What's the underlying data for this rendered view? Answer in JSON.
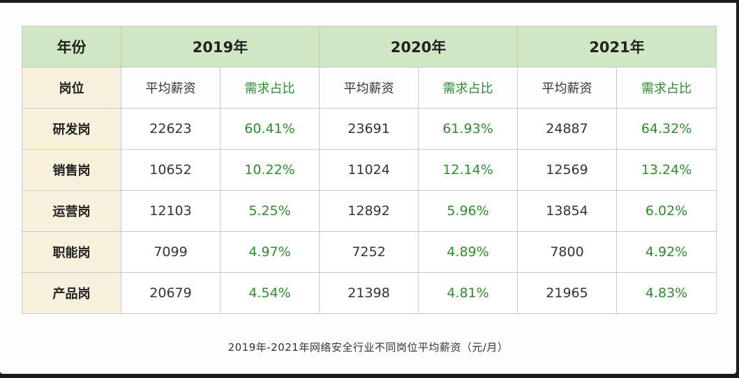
{
  "table": {
    "corner_label": "年份",
    "years": [
      "2019年",
      "2020年",
      "2021年"
    ],
    "sub_row_label": "岗位",
    "sub_headers": {
      "salary": "平均薪资",
      "share": "需求占比"
    },
    "rows": [
      {
        "position": "研发岗",
        "values": [
          [
            "22623",
            "60.41%"
          ],
          [
            "23691",
            "61.93%"
          ],
          [
            "24887",
            "64.32%"
          ]
        ]
      },
      {
        "position": "销售岗",
        "values": [
          [
            "10652",
            "10.22%"
          ],
          [
            "11024",
            "12.14%"
          ],
          [
            "12569",
            "13.24%"
          ]
        ]
      },
      {
        "position": "运营岗",
        "values": [
          [
            "12103",
            "5.25%"
          ],
          [
            "12892",
            "5.96%"
          ],
          [
            "13854",
            "6.02%"
          ]
        ]
      },
      {
        "position": "职能岗",
        "values": [
          [
            "7099",
            "4.97%"
          ],
          [
            "7252",
            "4.89%"
          ],
          [
            "7800",
            "4.92%"
          ]
        ]
      },
      {
        "position": "产品岗",
        "values": [
          [
            "20679",
            "4.54%"
          ],
          [
            "21398",
            "4.81%"
          ],
          [
            "21965",
            "4.83%"
          ]
        ]
      }
    ]
  },
  "caption": "2019年-2021年网络安全行业不同岗位平均薪资（元/月）",
  "colors": {
    "header_green": "#cfe8c3",
    "label_cream": "#f7f0dc",
    "percent_green": "#2e8b2e"
  }
}
